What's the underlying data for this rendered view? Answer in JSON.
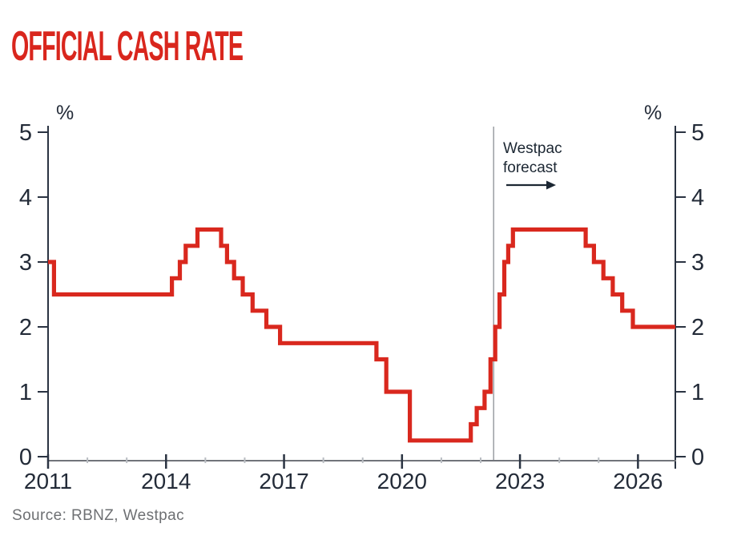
{
  "title": "OFFICIAL CASH RATE",
  "source": "Source: RBNZ, Westpac",
  "annotation": {
    "line1": "Westpac",
    "line2": "forecast"
  },
  "axis": {
    "left_unit": "%",
    "right_unit": "%"
  },
  "colors": {
    "title": "#d9261d",
    "series": "#d9281e",
    "axis_dark": "#2a3342",
    "axis_gray": "#71747a",
    "tick_minor": "#b9bdc2",
    "label": "#232b38",
    "divider": "#9b9ea3",
    "annotation": "#1c2733",
    "source": "#6e7073"
  },
  "chart_data": {
    "type": "line",
    "style": "step",
    "title": "OFFICIAL CASH RATE",
    "xlabel": "",
    "ylabel": "%",
    "unit": "%",
    "ylim": [
      0,
      5
    ],
    "xlim": [
      2011,
      2026.95
    ],
    "y_ticks": [
      0,
      1,
      2,
      3,
      4,
      5
    ],
    "x_ticks_major": [
      2011,
      2014,
      2017,
      2020,
      2023,
      2026
    ],
    "x_ticks_minor": [
      2012,
      2013,
      2015,
      2016,
      2018,
      2019,
      2021,
      2022,
      2024,
      2025
    ],
    "grid": false,
    "legend": "none",
    "forecast_divider_x": 2022.33,
    "series": [
      {
        "name": "Official Cash Rate (actual and Westpac forecast)",
        "steps": [
          [
            2011.0,
            3.0
          ],
          [
            2011.15,
            2.5
          ],
          [
            2014.15,
            2.75
          ],
          [
            2014.35,
            3.0
          ],
          [
            2014.5,
            3.25
          ],
          [
            2014.8,
            3.5
          ],
          [
            2015.4,
            3.25
          ],
          [
            2015.55,
            3.0
          ],
          [
            2015.73,
            2.75
          ],
          [
            2015.95,
            2.5
          ],
          [
            2016.2,
            2.25
          ],
          [
            2016.55,
            2.0
          ],
          [
            2016.9,
            1.75
          ],
          [
            2019.35,
            1.5
          ],
          [
            2019.6,
            1.0
          ],
          [
            2020.2,
            0.25
          ],
          [
            2021.75,
            0.5
          ],
          [
            2021.9,
            0.75
          ],
          [
            2022.1,
            1.0
          ],
          [
            2022.25,
            1.5
          ],
          [
            2022.37,
            2.0
          ],
          [
            2022.48,
            2.5
          ],
          [
            2022.6,
            3.0
          ],
          [
            2022.7,
            3.25
          ],
          [
            2022.82,
            3.5
          ],
          [
            2024.67,
            3.25
          ],
          [
            2024.88,
            3.0
          ],
          [
            2025.12,
            2.75
          ],
          [
            2025.36,
            2.5
          ],
          [
            2025.6,
            2.25
          ],
          [
            2025.87,
            2.0
          ]
        ]
      }
    ]
  }
}
